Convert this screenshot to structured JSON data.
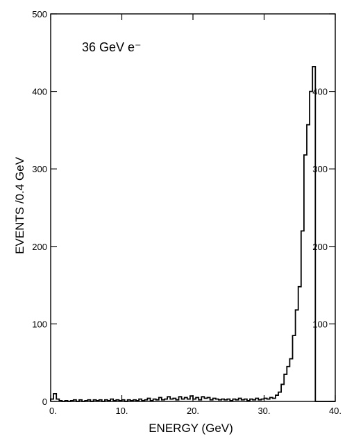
{
  "chart_data": {
    "type": "histogram",
    "annotation": "36 GeV e⁻",
    "xlabel": "ENERGY  (GeV)",
    "ylabel": "EVENTS /0.4 GeV",
    "xlim": [
      0,
      40
    ],
    "ylim": [
      0,
      500
    ],
    "bin_width": 0.4,
    "x_ticks": [
      0,
      10,
      20,
      30,
      40
    ],
    "x_tick_labels": [
      "0.",
      "10.",
      "20.",
      "30.",
      "40."
    ],
    "y_ticks": [
      0,
      100,
      200,
      300,
      400,
      500
    ],
    "y_tick_labels": [
      "0",
      "100",
      "200",
      "300",
      "400",
      "500"
    ],
    "grid": false,
    "bins": [
      {
        "x": 0.0,
        "y": 3
      },
      {
        "x": 0.4,
        "y": 10
      },
      {
        "x": 0.8,
        "y": 3
      },
      {
        "x": 1.2,
        "y": 1
      },
      {
        "x": 1.6,
        "y": 0
      },
      {
        "x": 2.0,
        "y": 1
      },
      {
        "x": 2.4,
        "y": 0
      },
      {
        "x": 2.8,
        "y": 1
      },
      {
        "x": 3.2,
        "y": 2
      },
      {
        "x": 3.6,
        "y": 0
      },
      {
        "x": 4.0,
        "y": 2
      },
      {
        "x": 4.4,
        "y": 0
      },
      {
        "x": 4.8,
        "y": 1
      },
      {
        "x": 5.2,
        "y": 2
      },
      {
        "x": 5.6,
        "y": 0
      },
      {
        "x": 6.0,
        "y": 2
      },
      {
        "x": 6.4,
        "y": 1
      },
      {
        "x": 6.8,
        "y": 2
      },
      {
        "x": 7.2,
        "y": 0
      },
      {
        "x": 7.6,
        "y": 2
      },
      {
        "x": 8.0,
        "y": 1
      },
      {
        "x": 8.4,
        "y": 3
      },
      {
        "x": 8.8,
        "y": 1
      },
      {
        "x": 9.2,
        "y": 2
      },
      {
        "x": 9.6,
        "y": 1
      },
      {
        "x": 10.0,
        "y": 2
      },
      {
        "x": 10.4,
        "y": 0
      },
      {
        "x": 10.8,
        "y": 2
      },
      {
        "x": 11.2,
        "y": 1
      },
      {
        "x": 11.6,
        "y": 2
      },
      {
        "x": 12.0,
        "y": 1
      },
      {
        "x": 12.4,
        "y": 3
      },
      {
        "x": 12.8,
        "y": 1
      },
      {
        "x": 13.2,
        "y": 2
      },
      {
        "x": 13.6,
        "y": 4
      },
      {
        "x": 14.0,
        "y": 1
      },
      {
        "x": 14.4,
        "y": 3
      },
      {
        "x": 14.8,
        "y": 2
      },
      {
        "x": 15.2,
        "y": 5
      },
      {
        "x": 15.6,
        "y": 2
      },
      {
        "x": 16.0,
        "y": 3
      },
      {
        "x": 16.4,
        "y": 6
      },
      {
        "x": 16.8,
        "y": 3
      },
      {
        "x": 17.2,
        "y": 4
      },
      {
        "x": 17.6,
        "y": 2
      },
      {
        "x": 18.0,
        "y": 6
      },
      {
        "x": 18.4,
        "y": 3
      },
      {
        "x": 18.8,
        "y": 5
      },
      {
        "x": 19.2,
        "y": 3
      },
      {
        "x": 19.6,
        "y": 7
      },
      {
        "x": 20.0,
        "y": 3
      },
      {
        "x": 20.4,
        "y": 5
      },
      {
        "x": 20.8,
        "y": 2
      },
      {
        "x": 21.2,
        "y": 6
      },
      {
        "x": 21.6,
        "y": 4
      },
      {
        "x": 22.0,
        "y": 5
      },
      {
        "x": 22.4,
        "y": 2
      },
      {
        "x": 22.8,
        "y": 4
      },
      {
        "x": 23.2,
        "y": 3
      },
      {
        "x": 23.6,
        "y": 2
      },
      {
        "x": 24.0,
        "y": 3
      },
      {
        "x": 24.4,
        "y": 2
      },
      {
        "x": 24.8,
        "y": 3
      },
      {
        "x": 25.2,
        "y": 1
      },
      {
        "x": 25.6,
        "y": 3
      },
      {
        "x": 26.0,
        "y": 2
      },
      {
        "x": 26.4,
        "y": 4
      },
      {
        "x": 26.8,
        "y": 2
      },
      {
        "x": 27.2,
        "y": 3
      },
      {
        "x": 27.6,
        "y": 1
      },
      {
        "x": 28.0,
        "y": 3
      },
      {
        "x": 28.4,
        "y": 2
      },
      {
        "x": 28.8,
        "y": 4
      },
      {
        "x": 29.2,
        "y": 2
      },
      {
        "x": 29.6,
        "y": 3
      },
      {
        "x": 30.0,
        "y": 4
      },
      {
        "x": 30.4,
        "y": 3
      },
      {
        "x": 30.8,
        "y": 5
      },
      {
        "x": 31.2,
        "y": 4
      },
      {
        "x": 31.6,
        "y": 8
      },
      {
        "x": 32.0,
        "y": 12
      },
      {
        "x": 32.4,
        "y": 22
      },
      {
        "x": 32.8,
        "y": 35
      },
      {
        "x": 33.2,
        "y": 45
      },
      {
        "x": 33.6,
        "y": 55
      },
      {
        "x": 34.0,
        "y": 85
      },
      {
        "x": 34.4,
        "y": 118
      },
      {
        "x": 34.8,
        "y": 148
      },
      {
        "x": 35.2,
        "y": 220
      },
      {
        "x": 35.6,
        "y": 318
      },
      {
        "x": 36.0,
        "y": 357
      },
      {
        "x": 36.4,
        "y": 400
      },
      {
        "x": 36.8,
        "y": 432
      },
      {
        "x": 37.2,
        "y": 0
      },
      {
        "x": 37.6,
        "y": 0
      },
      {
        "x": 38.0,
        "y": 0
      },
      {
        "x": 38.4,
        "y": 0
      },
      {
        "x": 38.8,
        "y": 0
      },
      {
        "x": 39.2,
        "y": 0
      },
      {
        "x": 39.6,
        "y": 0
      }
    ]
  }
}
